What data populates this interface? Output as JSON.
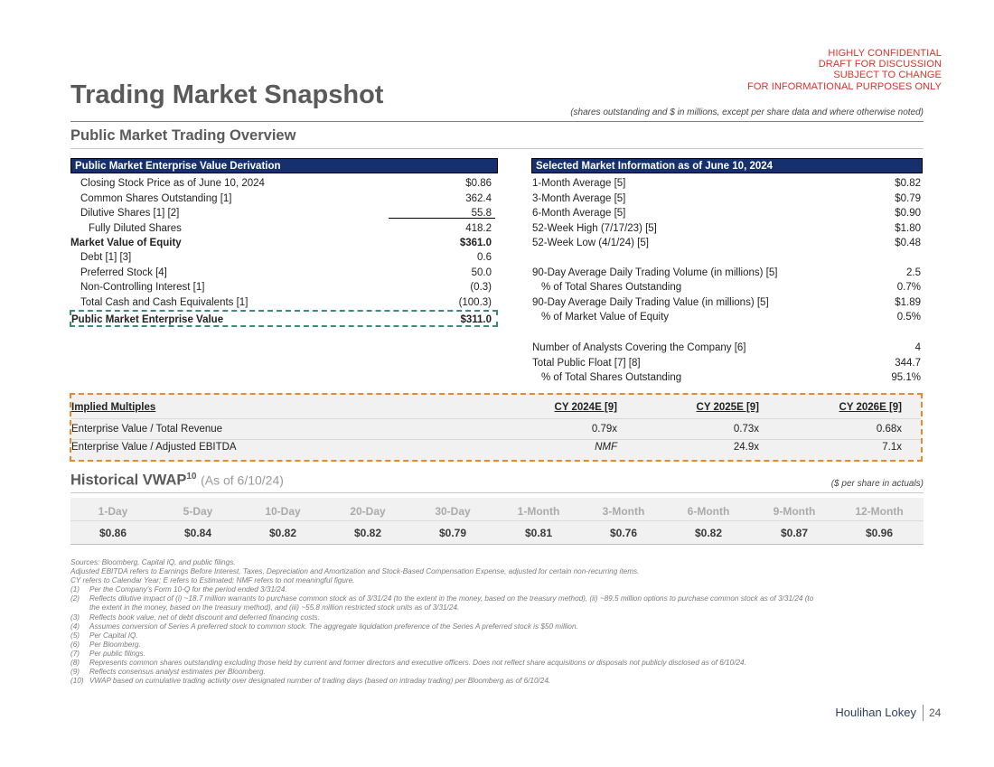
{
  "confidential": [
    "HIGHLY CONFIDENTIAL",
    "DRAFT FOR DISCUSSION",
    "SUBJECT TO CHANGE",
    "FOR INFORMATIONAL PURPOSES ONLY"
  ],
  "title": "Trading Market Snapshot",
  "units_note": "(shares outstanding and $ in millions, except per share data and where otherwise noted)",
  "section_title": "Public Market Trading Overview",
  "ev_derivation": {
    "header": "Public Market Enterprise Value Derivation",
    "rows": [
      {
        "label": "Closing Stock Price as of June 10, 2024",
        "value": "$0.86"
      },
      {
        "label": "Common Shares Outstanding [1]",
        "value": "362.4"
      },
      {
        "label": "Dilutive Shares [1] [2]",
        "value": "55.8"
      },
      {
        "label": "Fully Diluted Shares",
        "value": "418.2"
      },
      {
        "label": "Market Value of Equity",
        "value": "$361.0"
      },
      {
        "label": "Debt [1] [3]",
        "value": "0.6"
      },
      {
        "label": "Preferred Stock [4]",
        "value": "50.0"
      },
      {
        "label": "Non-Controlling Interest [1]",
        "value": "(0.3)"
      },
      {
        "label": "Total Cash and Cash Equivalents [1]",
        "value": "(100.3)"
      },
      {
        "label": "Public Market Enterprise Value",
        "value": "$311.0"
      }
    ]
  },
  "market_info": {
    "header": "Selected Market Information as of June 10, 2024",
    "rows": [
      {
        "label": "1-Month Average [5]",
        "value": "$0.82"
      },
      {
        "label": "3-Month Average [5]",
        "value": "$0.79"
      },
      {
        "label": "6-Month Average [5]",
        "value": "$0.90"
      },
      {
        "label": "52-Week High (7/17/23) [5]",
        "value": "$1.80"
      },
      {
        "label": "52-Week Low (4/1/24) [5]",
        "value": "$0.48"
      },
      {
        "label": "90-Day Average Daily Trading Volume (in millions) [5]",
        "value": "2.5"
      },
      {
        "label": "% of Total Shares Outstanding",
        "value": "0.7%"
      },
      {
        "label": "90-Day Average Daily Trading Value (in millions) [5]",
        "value": "$1.89"
      },
      {
        "label": "% of Market Value of Equity",
        "value": "0.5%"
      },
      {
        "label": "Number of Analysts Covering the Company [6]",
        "value": "4"
      },
      {
        "label": "Total Public Float [7] [8]",
        "value": "344.7"
      },
      {
        "label": "% of Total Shares Outstanding",
        "value": "95.1%"
      }
    ]
  },
  "implied_multiples": {
    "header": [
      "Implied Multiples",
      "CY 2024E [9]",
      "CY 2025E [9]",
      "CY 2026E [9]"
    ],
    "rows": [
      {
        "label": "Enterprise Value / Total Revenue",
        "values": [
          "0.79x",
          "0.73x",
          "0.68x"
        ]
      },
      {
        "label": "Enterprise Value / Adjusted EBITDA",
        "values": [
          "NMF",
          "24.9x",
          "7.1x"
        ]
      }
    ]
  },
  "vwap": {
    "title": "Historical VWAP",
    "superscript": "10",
    "as_of": "(As of 6/10/24)",
    "note": "($ per share in actuals)",
    "periods": [
      "1-Day",
      "5-Day",
      "10-Day",
      "20-Day",
      "30-Day",
      "1-Month",
      "3-Month",
      "6-Month",
      "9-Month",
      "12-Month"
    ],
    "values": [
      "$0.86",
      "$0.84",
      "$0.82",
      "$0.82",
      "$0.79",
      "$0.81",
      "$0.76",
      "$0.82",
      "$0.87",
      "$0.96"
    ]
  },
  "notes": {
    "lines": [
      "Sources: Bloomberg, Capital IQ, and public filings.",
      "Adjusted EBITDA refers to Earnings Before Interest, Taxes, Depreciation and Amortization and Stock-Based Compensation Expense, adjusted for certain non-recurring items.",
      "CY refers to Calendar Year; E refers to Estimated; NMF refers to not meaningful figure."
    ],
    "footnotes": [
      {
        "num": "(1)",
        "text": "Per the Company's Form 10-Q for the period ended 3/31/24."
      },
      {
        "num": "(2)",
        "text": "Reflects dilutive impact of (i) ~18.7 million warrants to purchase common stock as of 3/31/24 (to the extent in the money, based on the treasury method), (ii) ~89.5 million options to purchase common stock as of 3/31/24 (to the extent in the money, based on the treasury method), and (iii) ~55.8 million restricted stock units as of 3/31/24."
      },
      {
        "num": "(3)",
        "text": "Reflects book value, net of debt discount and deferred financing costs."
      },
      {
        "num": "(4)",
        "text": "Assumes conversion of Series A preferred stock to common stock. The aggregate liquidation preference of the Series A preferred stock is $50 million."
      },
      {
        "num": "(5)",
        "text": "Per Capital IQ."
      },
      {
        "num": "(6)",
        "text": "Per Bloomberg."
      },
      {
        "num": "(7)",
        "text": "Per public filings."
      },
      {
        "num": "(8)",
        "text": "Represents common shares outstanding excluding those held by current and former directors and executive officers. Does not reflect share acquisitions or disposals not publicly disclosed as of 6/10/24."
      },
      {
        "num": "(9)",
        "text": "Reflects consensus analyst estimates per Bloomberg."
      },
      {
        "num": "(10)",
        "text": "VWAP based on cumulative trading activity over designated number of trading days (based on intraday trading) per Bloomberg as of 6/10/24."
      }
    ]
  },
  "footer": {
    "logo": "Houlihan Lokey",
    "page": "24"
  },
  "colors": {
    "header_bg": "#16306e",
    "confidential": "#e0302a",
    "ev_box": "#3f8a7c",
    "multiples_box": "#e8892b"
  }
}
